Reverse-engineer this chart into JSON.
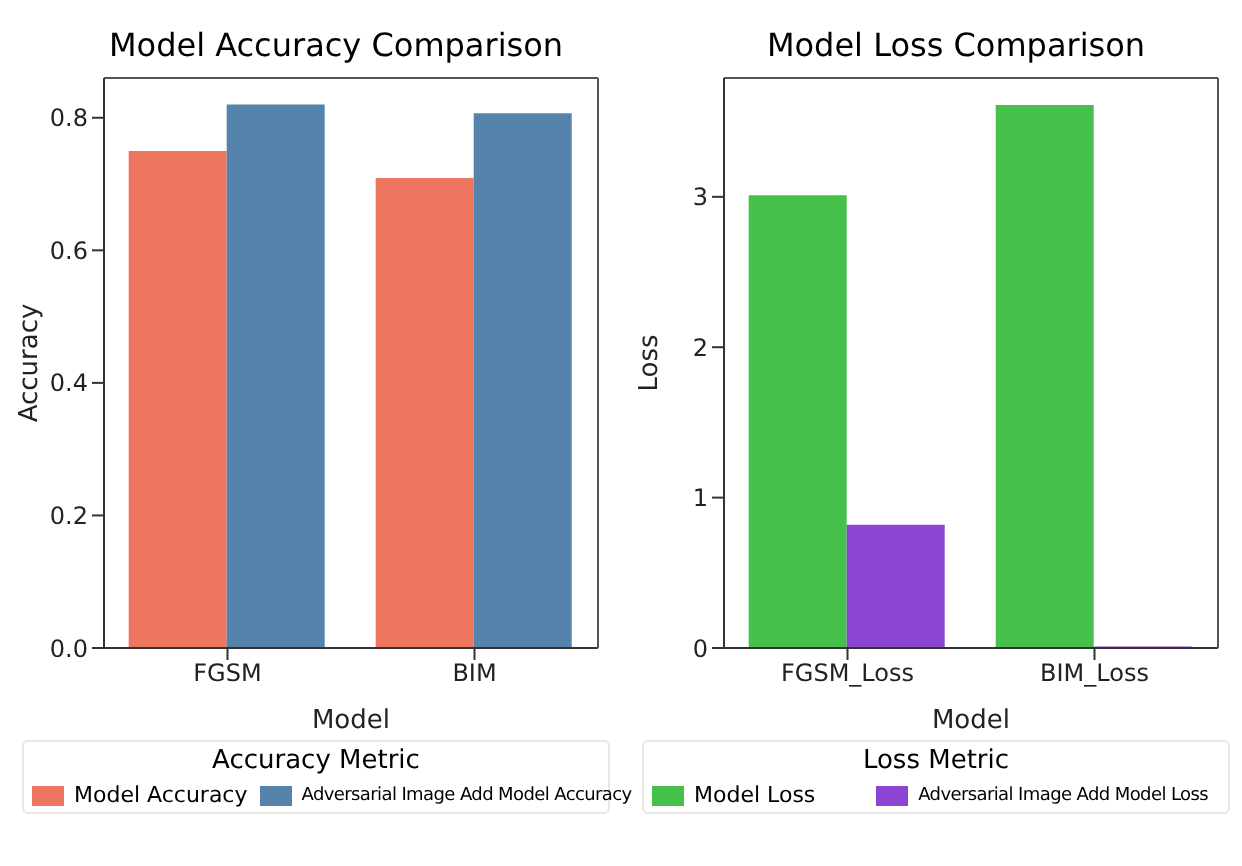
{
  "chart_data": [
    {
      "type": "bar",
      "title": "Model Accuracy Comparison",
      "xlabel": "Model",
      "ylabel": "Accuracy",
      "legend_title": "Accuracy Metric",
      "categories": [
        "FGSM",
        "BIM"
      ],
      "series": [
        {
          "name": "Model Accuracy",
          "color": "#ee7660",
          "values": [
            0.75,
            0.709
          ]
        },
        {
          "name": "Adversarial Image Add Model Accuracy",
          "color": "#5583ab",
          "values": [
            0.82,
            0.807
          ]
        }
      ],
      "ylim": [
        0,
        0.86
      ],
      "yticks": [
        {
          "value": 0,
          "label": "0.0"
        },
        0.2,
        0.4,
        0.6,
        0.8
      ],
      "grid": false,
      "legend": "bottom"
    },
    {
      "type": "bar",
      "title": "Model Loss Comparison",
      "xlabel": "Model",
      "ylabel": "Loss",
      "legend_title": "Loss Metric",
      "categories": [
        "FGSM_Loss",
        "BIM_Loss"
      ],
      "series": [
        {
          "name": "Model Loss",
          "color": "#45c04a",
          "values": [
            3.01,
            3.61
          ]
        },
        {
          "name": "Adversarial Image Add Model Loss",
          "color": "#8c44d2",
          "values": [
            0.82,
            0.01
          ]
        }
      ],
      "ylim": [
        0,
        3.79
      ],
      "yticks": [
        0,
        1,
        2,
        3
      ],
      "grid": false,
      "legend": "bottom"
    }
  ]
}
